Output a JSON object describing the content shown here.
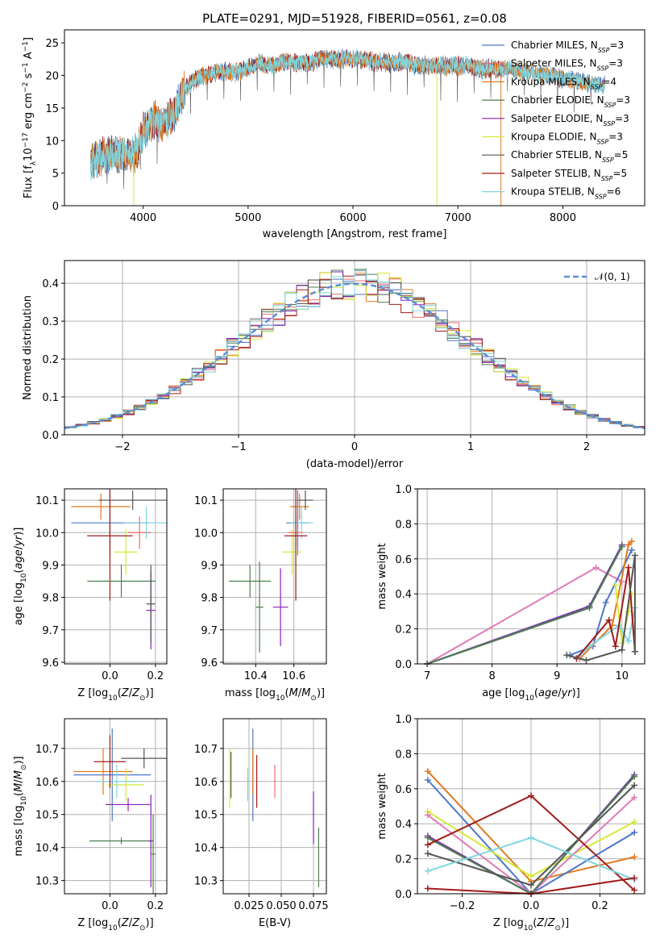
{
  "colors": {
    "chabrier_miles": "#4f77c9",
    "salpeter_miles": "#f06b6b",
    "kroupa_miles": "#e07a1f",
    "chabrier_elodie": "#4e7d4e",
    "salpeter_elodie": "#8a1fb8",
    "kroupa_elodie": "#d6ea38",
    "chabrier_stelib": "#555555",
    "salpeter_stelib": "#a01c1c",
    "kroupa_stelib": "#7fd6e0",
    "extra_pink": "#e07ab6",
    "extra_purple": "#7a3aaa",
    "normal_curve": "#5b8ed6",
    "grid": "#b0b0b0"
  },
  "chart_data": [
    {
      "id": "spectrum",
      "type": "line",
      "title": "PLATE=0291, MJD=51928, FIBERID=0561, z=0.08",
      "xlabel": "wavelength [Angstrom, rest frame]",
      "ylabel": "Flux [fλ10⁻¹⁷ erg cm⁻² s⁻¹ A⁻¹]",
      "xlim": [
        3250,
        8780
      ],
      "ylim": [
        0,
        27
      ],
      "xticks": [
        "4000",
        "5000",
        "6000",
        "7000",
        "8000"
      ],
      "yticks": [
        "0",
        "5",
        "10",
        "15",
        "20",
        "25"
      ],
      "grid": false,
      "legend_position": "right",
      "x": [
        3500,
        3600,
        3700,
        3800,
        3900,
        3950,
        4000,
        4100,
        4200,
        4300,
        4400,
        4500,
        4600,
        4700,
        4800,
        4900,
        5000,
        5100,
        5200,
        5300,
        5400,
        5500,
        5600,
        5700,
        5800,
        5900,
        6000,
        6100,
        6200,
        6300,
        6400,
        6500,
        6600,
        6700,
        6800,
        6900,
        7000,
        7100,
        7200,
        7300,
        7400,
        7500,
        7600,
        7700,
        7800,
        7900,
        8000,
        8200,
        8400
      ],
      "y": [
        6.5,
        7.5,
        8.0,
        8.0,
        7.5,
        8.5,
        11.5,
        13.0,
        12.5,
        14.5,
        18.0,
        19.5,
        20.0,
        20.5,
        20.5,
        20.5,
        21.0,
        22.0,
        21.5,
        22.0,
        22.0,
        22.0,
        22.0,
        22.5,
        22.5,
        22.5,
        22.5,
        22.5,
        22.0,
        22.0,
        22.0,
        22.0,
        21.5,
        21.5,
        21.5,
        21.5,
        21.5,
        21.5,
        21.0,
        21.0,
        21.0,
        21.0,
        20.5,
        20.5,
        20.0,
        20.0,
        19.5,
        19.0,
        18.5
      ],
      "series_names": [
        "Chabrier MILES, N_SSP=3",
        "Salpeter MILES, N_SSP=3",
        "Kroupa MILES, N_SSP=4",
        "Chabrier ELODIE, N_SSP=3",
        "Salpeter ELODIE, N_SSP=3",
        "Kroupa ELODIE, N_SSP=3",
        "Chabrier STELIB, N_SSP=5",
        "Salpeter STELIB, N_SSP=5",
        "Kroupa STELIB, N_SSP=6"
      ],
      "legend": [
        {
          "name": "Chabrier MILES, N",
          "sub": "SSP",
          "tail": "=3"
        },
        {
          "name": "Salpeter MILES, N",
          "sub": "SSP",
          "tail": "=3"
        },
        {
          "name": "Kroupa MILES, N",
          "sub": "SSP",
          "tail": "=4"
        },
        {
          "name": "Chabrier ELODIE, N",
          "sub": "SSP",
          "tail": "=3"
        },
        {
          "name": "Salpeter ELODIE, N",
          "sub": "SSP",
          "tail": "=3"
        },
        {
          "name": "Kroupa ELODIE, N",
          "sub": "SSP",
          "tail": "=3"
        },
        {
          "name": "Chabrier STELIB, N",
          "sub": "SSP",
          "tail": "=5"
        },
        {
          "name": "Salpeter STELIB, N",
          "sub": "SSP",
          "tail": "=5"
        },
        {
          "name": "Kroupa STELIB, N",
          "sub": "SSP",
          "tail": "=6"
        }
      ]
    },
    {
      "id": "residuals",
      "type": "line",
      "xlabel": "(data-model)/error",
      "ylabel": "Normed distribution",
      "xlim": [
        -2.5,
        2.5
      ],
      "ylim": [
        0,
        0.46
      ],
      "xticks": [
        "−2",
        "−1",
        "0",
        "1",
        "2"
      ],
      "yticks": [
        "0.0",
        "0.1",
        "0.2",
        "0.3",
        "0.4"
      ],
      "grid": true,
      "legend_position": "top-right",
      "legend": "𝒩(0, 1)",
      "curve": {
        "type": "normal",
        "mean": 0,
        "sigma": 1
      }
    },
    {
      "id": "age_vs_z",
      "type": "scatter",
      "xlabel": "Z [log10(Z/Z⊙)]",
      "ylabel": "age [log10(age/yr)]",
      "xlim": [
        -0.2,
        0.25
      ],
      "ylim": [
        9.595,
        10.135
      ],
      "xticks": [
        "0.0",
        "0.2"
      ],
      "yticks": [
        "9.6",
        "9.7",
        "9.8",
        "9.9",
        "10.0",
        "10.1"
      ],
      "points": [
        {
          "x": 0.0,
          "xerr": 0.17,
          "y": 10.03,
          "yerr": 0.1,
          "series": "Chabrier MILES"
        },
        {
          "x": -0.04,
          "xerr": 0.13,
          "y": 10.08,
          "yerr": 0.04,
          "series": "Kroupa MILES"
        },
        {
          "x": 0.07,
          "xerr": 0.05,
          "y": 9.94,
          "yerr": 0.07,
          "series": "Kroupa ELODIE"
        },
        {
          "x": 0.13,
          "xerr": 0.05,
          "y": 10.0,
          "yerr": 0.05,
          "series": "Salpeter MILES"
        },
        {
          "x": 0.16,
          "xerr": 0.1,
          "y": 10.03,
          "yerr": 0.05,
          "series": "Kroupa STELIB"
        },
        {
          "x": 0.1,
          "xerr": 0.15,
          "y": 10.1,
          "yerr": 0.03,
          "series": "Chabrier STELIB"
        },
        {
          "x": 0.0,
          "xerr": 0.1,
          "y": 9.99,
          "yerr": 0.2,
          "series": "Salpeter STELIB"
        },
        {
          "x": 0.05,
          "xerr": 0.15,
          "y": 9.85,
          "yerr": 0.05,
          "series": "Chabrier ELODIE"
        },
        {
          "x": 0.18,
          "xerr": 0.02,
          "y": 9.76,
          "yerr": 0.12,
          "series": "Salpeter ELODIE"
        },
        {
          "x": 0.18,
          "xerr": 0.02,
          "y": 9.78,
          "yerr": 0.12,
          "series": "Chabrier STELIB"
        }
      ]
    },
    {
      "id": "age_vs_mass",
      "type": "scatter",
      "xlabel": "mass [log10(M/M⊙)]",
      "ylabel": "",
      "xlim": [
        10.23,
        10.77
      ],
      "ylim": [
        9.595,
        10.135
      ],
      "xticks": [
        "10.4",
        "10.6"
      ],
      "yticks": [
        "9.6",
        "9.7",
        "9.8",
        "9.9",
        "10.0",
        "10.1"
      ],
      "points": [
        {
          "x": 10.62,
          "xerr": 0.06,
          "y": 10.03,
          "yerr": 0.1,
          "series": "Chabrier MILES"
        },
        {
          "x": 10.63,
          "xerr": 0.05,
          "y": 10.08,
          "yerr": 0.04,
          "series": "Kroupa MILES"
        },
        {
          "x": 10.59,
          "xerr": 0.05,
          "y": 9.94,
          "yerr": 0.07,
          "series": "Kroupa ELODIE"
        },
        {
          "x": 10.61,
          "xerr": 0.04,
          "y": 10.0,
          "yerr": 0.05,
          "series": "Salpeter MILES"
        },
        {
          "x": 10.64,
          "xerr": 0.06,
          "y": 10.03,
          "yerr": 0.05,
          "series": "Kroupa STELIB"
        },
        {
          "x": 10.66,
          "xerr": 0.04,
          "y": 10.1,
          "yerr": 0.03,
          "series": "Chabrier STELIB"
        },
        {
          "x": 10.61,
          "xerr": 0.06,
          "y": 9.99,
          "yerr": 0.2,
          "series": "Salpeter STELIB"
        },
        {
          "x": 10.37,
          "xerr": 0.11,
          "y": 9.85,
          "yerr": 0.05,
          "series": "Chabrier ELODIE"
        },
        {
          "x": 10.53,
          "xerr": 0.04,
          "y": 9.77,
          "yerr": 0.12,
          "series": "Salpeter ELODIE"
        },
        {
          "x": 10.42,
          "xerr": 0.02,
          "y": 9.77,
          "yerr": 0.14,
          "series": "Chabrier ELODIE"
        }
      ]
    },
    {
      "id": "weights_vs_age",
      "type": "line",
      "xlabel": "age [log10(age/yr)]",
      "ylabel": "mass weight",
      "xlim": [
        6.85,
        10.35
      ],
      "ylim": [
        0,
        1.0
      ],
      "xticks": [
        "7",
        "8",
        "9",
        "10"
      ],
      "yticks": [
        "0.0",
        "0.2",
        "0.4",
        "0.6",
        "0.8",
        "1.0"
      ],
      "grid": true,
      "series": [
        {
          "color": "extra_pink",
          "x": [
            7.0,
            9.6,
            10.0
          ],
          "y": [
            0.0,
            0.55,
            0.47
          ]
        },
        {
          "color": "extra_purple",
          "x": [
            7.0,
            9.5,
            10.0
          ],
          "y": [
            0.0,
            0.33,
            0.68
          ]
        },
        {
          "color": "chabrier_elodie",
          "x": [
            7.0,
            9.5,
            10.0
          ],
          "y": [
            0.0,
            0.32,
            0.67
          ]
        },
        {
          "color": "chabrier_miles",
          "x": [
            9.2,
            9.55,
            9.75,
            10.15
          ],
          "y": [
            0.05,
            0.1,
            0.35,
            0.65
          ]
        },
        {
          "color": "kroupa_miles",
          "x": [
            9.35,
            9.85,
            10.1,
            10.15
          ],
          "y": [
            0.03,
            0.22,
            0.68,
            0.7
          ]
        },
        {
          "color": "kroupa_elodie",
          "x": [
            9.9,
            10.0,
            10.1,
            10.15
          ],
          "y": [
            0.45,
            0.12,
            0.3,
            0.4
          ]
        },
        {
          "color": "kroupa_stelib",
          "x": [
            9.35,
            9.5,
            9.95,
            10.1,
            10.2
          ],
          "y": [
            0.05,
            0.1,
            0.22,
            0.13,
            0.32
          ]
        },
        {
          "color": "salpeter_stelib",
          "x": [
            9.3,
            9.8,
            9.9,
            10.1,
            10.2
          ],
          "y": [
            0.03,
            0.25,
            0.1,
            0.55,
            0.07
          ]
        },
        {
          "color": "chabrier_stelib",
          "x": [
            9.15,
            9.45,
            10.0,
            10.2,
            10.2
          ],
          "y": [
            0.05,
            0.02,
            0.08,
            0.62,
            0.07
          ]
        }
      ]
    },
    {
      "id": "mass_vs_z",
      "type": "scatter",
      "xlabel": "Z [log10(Z/Z⊙)]",
      "ylabel": "mass [log10(M/M⊙)]",
      "xlim": [
        -0.2,
        0.25
      ],
      "ylim": [
        10.26,
        10.79
      ],
      "xticks": [
        "0.0",
        "0.2"
      ],
      "yticks": [
        "10.3",
        "10.4",
        "10.5",
        "10.6",
        "10.7"
      ],
      "points": [
        {
          "x": 0.01,
          "xerr": 0.17,
          "y": 10.62,
          "yerr": 0.14,
          "series": "Chabrier MILES"
        },
        {
          "x": -0.03,
          "xerr": 0.13,
          "y": 10.63,
          "yerr": 0.07,
          "series": "Kroupa MILES"
        },
        {
          "x": 0.07,
          "xerr": 0.08,
          "y": 10.59,
          "yerr": 0.05,
          "series": "Kroupa ELODIE"
        },
        {
          "x": 0.03,
          "xerr": 0.1,
          "y": 10.6,
          "yerr": 0.05,
          "series": "Kroupa STELIB"
        },
        {
          "x": 0.0,
          "xerr": 0.07,
          "y": 10.66,
          "yerr": 0.08,
          "series": "Salpeter STELIB"
        },
        {
          "x": 0.15,
          "xerr": 0.1,
          "y": 10.67,
          "yerr": 0.03,
          "series": "Chabrier STELIB"
        },
        {
          "x": 0.08,
          "xerr": 0.1,
          "y": 10.53,
          "yerr": 0.02,
          "series": "Salpeter ELODIE"
        },
        {
          "x": 0.05,
          "xerr": 0.14,
          "y": 10.42,
          "yerr": 0.01,
          "series": "Chabrier ELODIE"
        },
        {
          "x": 0.18,
          "xerr": 0.01,
          "y": 10.42,
          "yerr": 0.14,
          "series": "Salpeter ELODIE"
        },
        {
          "x": 0.19,
          "xerr": 0.01,
          "y": 10.38,
          "yerr": 0.12,
          "series": "Chabrier ELODIE"
        }
      ]
    },
    {
      "id": "mass_vs_ebv",
      "type": "scatter",
      "xlabel": "E(B-V)",
      "ylabel": "",
      "xlim": [
        0.005,
        0.085
      ],
      "ylim": [
        10.26,
        10.79
      ],
      "xticks": [
        "0.025",
        "0.050",
        "0.075"
      ],
      "yticks": [
        "10.3",
        "10.4",
        "10.5",
        "10.6",
        "10.7"
      ],
      "points": [
        {
          "x": 0.01,
          "y": 10.61,
          "yerr": 0.09,
          "series": "Kroupa ELODIE"
        },
        {
          "x": 0.011,
          "y": 10.62,
          "yerr": 0.07,
          "series": "Chabrier STELIB"
        },
        {
          "x": 0.024,
          "y": 10.59,
          "yerr": 0.05,
          "series": "Kroupa STELIB"
        },
        {
          "x": 0.028,
          "y": 10.62,
          "yerr": 0.14,
          "series": "Chabrier MILES"
        },
        {
          "x": 0.031,
          "y": 10.6,
          "yerr": 0.08,
          "series": "Salpeter STELIB"
        },
        {
          "x": 0.028,
          "y": 10.63,
          "yerr": 0.07,
          "series": "Kroupa MILES"
        },
        {
          "x": 0.045,
          "y": 10.6,
          "yerr": 0.05,
          "series": "Salpeter MILES"
        },
        {
          "x": 0.075,
          "y": 10.49,
          "yerr": 0.08,
          "series": "Salpeter ELODIE"
        },
        {
          "x": 0.079,
          "y": 10.37,
          "yerr": 0.09,
          "series": "Chabrier ELODIE"
        }
      ]
    },
    {
      "id": "weights_vs_z",
      "type": "line",
      "xlabel": "Z [log10(Z/Z⊙)]",
      "ylabel": "mass weight",
      "xlim": [
        -0.33,
        0.33
      ],
      "ylim": [
        0,
        1.0
      ],
      "xticks": [
        "−0.2",
        "0.0",
        "0.2"
      ],
      "yticks": [
        "0.0",
        "0.2",
        "0.4",
        "0.6",
        "0.8",
        "1.0"
      ],
      "grid": true,
      "series": [
        {
          "color": "kroupa_miles",
          "x": [
            -0.3,
            0.0,
            0.3
          ],
          "y": [
            0.7,
            0.07,
            0.21
          ]
        },
        {
          "color": "chabrier_miles",
          "x": [
            -0.3,
            0.0,
            0.3
          ],
          "y": [
            0.65,
            0.0,
            0.35
          ]
        },
        {
          "color": "kroupa_elodie",
          "x": [
            -0.3,
            0.0,
            0.3
          ],
          "y": [
            0.47,
            0.1,
            0.41
          ]
        },
        {
          "color": "extra_pink",
          "x": [
            -0.3,
            0.0,
            0.3
          ],
          "y": [
            0.45,
            0.0,
            0.55
          ]
        },
        {
          "color": "extra_purple",
          "x": [
            -0.3,
            0.0,
            0.3
          ],
          "y": [
            0.33,
            0.0,
            0.68
          ]
        },
        {
          "color": "chabrier_elodie",
          "x": [
            -0.3,
            0.0,
            0.3
          ],
          "y": [
            0.32,
            0.0,
            0.67
          ]
        },
        {
          "color": "salpeter_stelib",
          "x": [
            -0.3,
            0.0,
            0.3
          ],
          "y": [
            0.28,
            0.56,
            0.02
          ]
        },
        {
          "color": "chabrier_stelib",
          "x": [
            -0.3,
            0.0,
            0.3
          ],
          "y": [
            0.23,
            0.05,
            0.62
          ]
        },
        {
          "color": "kroupa_stelib",
          "x": [
            -0.3,
            0.0,
            0.3
          ],
          "y": [
            0.13,
            0.32,
            0.08
          ]
        },
        {
          "color": "salpeter_stelib",
          "x": [
            -0.3,
            0.0,
            0.3
          ],
          "y": [
            0.03,
            0.0,
            0.09
          ]
        }
      ]
    }
  ]
}
